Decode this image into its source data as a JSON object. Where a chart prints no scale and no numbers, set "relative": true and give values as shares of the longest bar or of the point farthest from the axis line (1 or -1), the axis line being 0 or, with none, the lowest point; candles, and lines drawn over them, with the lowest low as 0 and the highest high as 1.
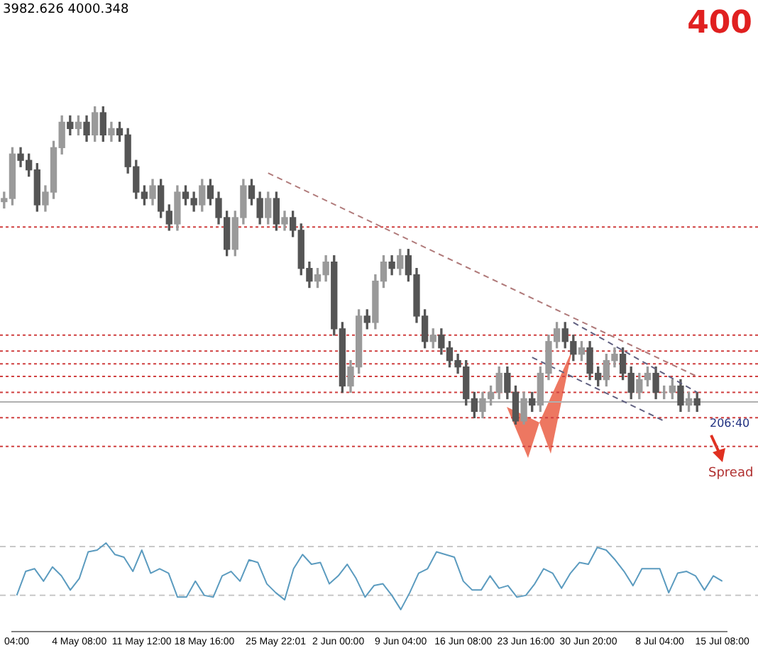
{
  "chart_data": [
    {
      "type": "candlestick",
      "relative": true,
      "colors": [
        "#9a9a9a",
        "#9a9a9a",
        "#555555",
        "#555555",
        "#555555",
        "#9a9a9a",
        "#9a9a9a",
        "#9a9a9a",
        "#555555",
        "#9a9a9a",
        "#555555",
        "#9a9a9a",
        "#555555",
        "#9a9a9a",
        "#555555",
        "#555555",
        "#555555",
        "#555555",
        "#9a9a9a",
        "#555555",
        "#555555",
        "#9a9a9a",
        "#555555",
        "#555555",
        "#9a9a9a",
        "#555555",
        "#555555",
        "#555555",
        "#9a9a9a",
        "#9a9a9a",
        "#555555",
        "#555555",
        "#9a9a9a",
        "#555555",
        "#9a9a9a",
        "#555555",
        "#555555",
        "#555555",
        "#9a9a9a",
        "#9a9a9a",
        "#555555",
        "#555555",
        "#9a9a9a",
        "#9a9a9a",
        "#555555",
        "#9a9a9a",
        "#9a9a9a",
        "#555555",
        "#9a9a9a",
        "#555555",
        "#555555",
        "#555555",
        "#9a9a9a",
        "#555555",
        "#555555",
        "#555555",
        "#555555",
        "#555555",
        "#9a9a9a",
        "#9a9a9a",
        "#9a9a9a",
        "#555555",
        "#555555",
        "#9a9a9a",
        "#555555",
        "#9a9a9a",
        "#9a9a9a",
        "#9a9a9a",
        "#555555",
        "#555555",
        "#9a9a9a",
        "#555555",
        "#555555",
        "#9a9a9a",
        "#9a9a9a",
        "#555555",
        "#555555",
        "#9a9a9a",
        "#9a9a9a",
        "#555555",
        "#9a9a9a",
        "#9a9a9a",
        "#555555",
        "#9a9a9a",
        "#555555"
      ],
      "tick_labels": false,
      "grid": false,
      "categories": [
        null,
        null,
        null,
        null,
        null,
        null,
        null,
        null,
        null,
        null,
        null,
        null,
        null,
        null,
        null,
        null,
        null,
        null,
        null,
        null,
        null,
        null,
        null,
        null,
        null,
        null,
        null,
        null,
        null,
        null,
        null,
        null,
        null,
        null,
        null,
        null,
        null,
        null,
        null,
        null,
        null,
        null,
        null,
        null,
        null,
        null,
        null,
        null,
        null,
        null,
        null,
        null,
        null,
        null,
        null,
        null,
        null,
        null,
        null,
        null,
        null,
        null,
        null,
        null,
        null,
        null,
        null,
        null,
        null,
        null,
        null,
        null,
        null,
        null,
        null,
        null,
        null,
        null,
        null,
        null,
        null,
        null,
        null,
        null,
        null
      ],
      "ohlc": [
        [
          0.7,
          0.73,
          0.68,
          0.71
        ],
        [
          0.71,
          0.87,
          0.69,
          0.85
        ],
        [
          0.85,
          0.87,
          0.81,
          0.83
        ],
        [
          0.83,
          0.85,
          0.78,
          0.8
        ],
        [
          0.8,
          0.82,
          0.67,
          0.69
        ],
        [
          0.69,
          0.75,
          0.67,
          0.73
        ],
        [
          0.73,
          0.89,
          0.71,
          0.87
        ],
        [
          0.87,
          0.97,
          0.85,
          0.95
        ],
        [
          0.95,
          0.97,
          0.91,
          0.93
        ],
        [
          0.93,
          0.97,
          0.91,
          0.95
        ],
        [
          0.95,
          0.97,
          0.89,
          0.91
        ],
        [
          0.91,
          1.0,
          0.89,
          0.98
        ],
        [
          0.98,
          1.0,
          0.89,
          0.91
        ],
        [
          0.91,
          0.95,
          0.89,
          0.93
        ],
        [
          0.93,
          0.95,
          0.89,
          0.91
        ],
        [
          0.91,
          0.93,
          0.79,
          0.81
        ],
        [
          0.81,
          0.83,
          0.71,
          0.73
        ],
        [
          0.73,
          0.75,
          0.69,
          0.71
        ],
        [
          0.71,
          0.77,
          0.69,
          0.75
        ],
        [
          0.75,
          0.77,
          0.65,
          0.67
        ],
        [
          0.67,
          0.69,
          0.61,
          0.63
        ],
        [
          0.63,
          0.75,
          0.61,
          0.73
        ],
        [
          0.73,
          0.75,
          0.69,
          0.71
        ],
        [
          0.71,
          0.73,
          0.67,
          0.69
        ],
        [
          0.69,
          0.77,
          0.67,
          0.75
        ],
        [
          0.75,
          0.77,
          0.69,
          0.71
        ],
        [
          0.71,
          0.73,
          0.63,
          0.65
        ],
        [
          0.65,
          0.67,
          0.53,
          0.55
        ],
        [
          0.55,
          0.67,
          0.53,
          0.65
        ],
        [
          0.65,
          0.77,
          0.63,
          0.75
        ],
        [
          0.75,
          0.77,
          0.69,
          0.71
        ],
        [
          0.71,
          0.73,
          0.63,
          0.65
        ],
        [
          0.65,
          0.73,
          0.63,
          0.71
        ],
        [
          0.71,
          0.73,
          0.61,
          0.63
        ],
        [
          0.63,
          0.67,
          0.61,
          0.65
        ],
        [
          0.65,
          0.67,
          0.59,
          0.61
        ],
        [
          0.61,
          0.63,
          0.47,
          0.49
        ],
        [
          0.49,
          0.51,
          0.43,
          0.45
        ],
        [
          0.45,
          0.49,
          0.43,
          0.47
        ],
        [
          0.47,
          0.53,
          0.45,
          0.51
        ],
        [
          0.51,
          0.53,
          0.28,
          0.3
        ],
        [
          0.3,
          0.32,
          0.1,
          0.12
        ],
        [
          0.12,
          0.2,
          0.1,
          0.18
        ],
        [
          0.18,
          0.36,
          0.16,
          0.34
        ],
        [
          0.34,
          0.36,
          0.3,
          0.32
        ],
        [
          0.32,
          0.47,
          0.3,
          0.45
        ],
        [
          0.45,
          0.53,
          0.43,
          0.51
        ],
        [
          0.51,
          0.53,
          0.47,
          0.49
        ],
        [
          0.49,
          0.55,
          0.47,
          0.53
        ],
        [
          0.53,
          0.55,
          0.45,
          0.47
        ],
        [
          0.47,
          0.49,
          0.32,
          0.34
        ],
        [
          0.34,
          0.36,
          0.24,
          0.26
        ],
        [
          0.26,
          0.3,
          0.24,
          0.28
        ],
        [
          0.28,
          0.3,
          0.22,
          0.24
        ],
        [
          0.24,
          0.26,
          0.18,
          0.2
        ],
        [
          0.2,
          0.22,
          0.16,
          0.18
        ],
        [
          0.18,
          0.2,
          0.06,
          0.08
        ],
        [
          0.08,
          0.1,
          0.02,
          0.04
        ],
        [
          0.04,
          0.1,
          0.02,
          0.08
        ],
        [
          0.08,
          0.12,
          0.06,
          0.1
        ],
        [
          0.1,
          0.18,
          0.08,
          0.16
        ],
        [
          0.16,
          0.18,
          0.08,
          0.1
        ],
        [
          0.1,
          0.12,
          0,
          0.01
        ],
        [
          0.01,
          0.1,
          0,
          0.08
        ],
        [
          0.08,
          0.1,
          0.04,
          0.06
        ],
        [
          0.06,
          0.18,
          0.04,
          0.16
        ],
        [
          0.16,
          0.28,
          0.14,
          0.26
        ],
        [
          0.26,
          0.32,
          0.24,
          0.3
        ],
        [
          0.3,
          0.32,
          0.24,
          0.26
        ],
        [
          0.26,
          0.28,
          0.2,
          0.22
        ],
        [
          0.22,
          0.26,
          0.2,
          0.24
        ],
        [
          0.24,
          0.26,
          0.14,
          0.16
        ],
        [
          0.16,
          0.18,
          0.12,
          0.14
        ],
        [
          0.14,
          0.22,
          0.12,
          0.2
        ],
        [
          0.2,
          0.24,
          0.18,
          0.22
        ],
        [
          0.22,
          0.24,
          0.14,
          0.16
        ],
        [
          0.16,
          0.18,
          0.08,
          0.1
        ],
        [
          0.1,
          0.16,
          0.08,
          0.14
        ],
        [
          0.14,
          0.18,
          0.12,
          0.16
        ],
        [
          0.16,
          0.18,
          0.08,
          0.1
        ],
        [
          0.1,
          0.12,
          0.08,
          0.1
        ],
        [
          0.1,
          0.14,
          0.08,
          0.12
        ],
        [
          0.12,
          0.14,
          0.04,
          0.06
        ],
        [
          0.06,
          0.1,
          0.04,
          0.08
        ],
        [
          0.08,
          0.1,
          0.04,
          0.06
        ]
      ],
      "series": [
        {
          "type": "line",
          "color": "#b07a7a",
          "line_style": "dashed",
          "values": [
            null,
            null,
            null,
            null,
            null,
            null,
            null,
            null,
            null,
            null,
            null,
            null,
            null,
            null,
            null,
            null,
            null,
            null,
            null,
            null,
            null,
            null,
            null,
            null,
            null,
            null,
            null,
            null,
            null,
            null,
            null,
            null,
            0.79,
            null,
            null,
            null,
            null,
            null,
            null,
            null,
            null,
            null,
            null,
            null,
            null,
            null,
            null,
            null,
            null,
            null,
            null,
            null,
            null,
            null,
            null,
            null,
            null,
            null,
            null,
            null,
            null,
            null,
            null,
            null,
            null,
            null,
            null,
            null,
            null,
            null,
            null,
            null,
            null,
            null,
            null,
            null,
            null,
            null,
            null,
            null,
            null,
            null,
            null,
            null,
            0.15
          ]
        },
        {
          "type": "line",
          "color": "#606080",
          "line_style": "dashed",
          "values": [
            null,
            null,
            null,
            null,
            null,
            null,
            null,
            null,
            null,
            null,
            null,
            null,
            null,
            null,
            null,
            null,
            null,
            null,
            null,
            null,
            null,
            null,
            null,
            null,
            null,
            null,
            null,
            null,
            null,
            null,
            null,
            null,
            null,
            null,
            null,
            null,
            null,
            null,
            null,
            null,
            null,
            null,
            null,
            null,
            null,
            null,
            null,
            null,
            null,
            null,
            null,
            null,
            null,
            null,
            null,
            null,
            null,
            null,
            null,
            null,
            null,
            null,
            null,
            null,
            null,
            null,
            null,
            null,
            null,
            0.32,
            null,
            null,
            null,
            null,
            null,
            null,
            null,
            null,
            null,
            null,
            null,
            null,
            null,
            null,
            0.1
          ]
        },
        {
          "type": "line",
          "color": "#606080",
          "line_style": "dashed",
          "values": [
            null,
            null,
            null,
            null,
            null,
            null,
            null,
            null,
            null,
            null,
            null,
            null,
            null,
            null,
            null,
            null,
            null,
            null,
            null,
            null,
            null,
            null,
            null,
            null,
            null,
            null,
            null,
            null,
            null,
            null,
            null,
            null,
            null,
            null,
            null,
            null,
            null,
            null,
            null,
            null,
            null,
            null,
            null,
            null,
            null,
            null,
            null,
            null,
            null,
            null,
            null,
            null,
            null,
            null,
            null,
            null,
            null,
            null,
            null,
            null,
            null,
            null,
            null,
            null,
            0.21,
            null,
            null,
            null,
            null,
            null,
            null,
            null,
            null,
            null,
            null,
            null,
            null,
            null,
            null,
            null,
            0.01,
            null,
            null,
            null,
            null
          ]
        }
      ],
      "ref_lines": [
        {
          "axis": "y",
          "value": 0.62,
          "color": "#d04040",
          "line_style": "dotted"
        },
        {
          "axis": "y",
          "value": 0.28,
          "color": "#d04040",
          "line_style": "dotted"
        },
        {
          "axis": "y",
          "value": 0.23,
          "color": "#d04040",
          "line_style": "dotted"
        },
        {
          "axis": "y",
          "value": 0.19,
          "color": "#d04040",
          "line_style": "dotted"
        },
        {
          "axis": "y",
          "value": 0.15,
          "color": "#d04040",
          "line_style": "dotted"
        },
        {
          "axis": "y",
          "value": 0.1,
          "color": "#d04040",
          "line_style": "dotted"
        },
        {
          "axis": "y",
          "value": 0.07,
          "color": "#b0b0b0",
          "line_style": "solid"
        },
        {
          "axis": "y",
          "value": 0.02,
          "color": "#d04040",
          "line_style": "dotted"
        },
        {
          "axis": "y",
          "value": -0.07,
          "color": "#d04040",
          "line_style": "dotted"
        }
      ],
      "annotations": [
        "3982.626 4000.348",
        "400",
        "206:40",
        "Spread"
      ]
    },
    {
      "type": "line",
      "relative": true,
      "grid": false,
      "categories": [
        "04:00",
        null,
        null,
        null,
        null,
        null,
        null,
        "4 May 08:00",
        null,
        null,
        null,
        null,
        null,
        null,
        "11 May 12:00",
        null,
        null,
        null,
        null,
        null,
        null,
        "18 May 16:00",
        null,
        null,
        null,
        null,
        null,
        null,
        null,
        "25 May 22:01",
        null,
        null,
        null,
        null,
        null,
        null,
        "2 Jun 00:00",
        null,
        null,
        null,
        null,
        null,
        null,
        "9 Jun 04:00",
        null,
        null,
        null,
        null,
        null,
        null,
        "16 Jun 08:00",
        null,
        null,
        null,
        null,
        null,
        null,
        "23 Jun 16:00",
        null,
        null,
        null,
        null,
        null,
        null,
        "30 Jun 20:00",
        null,
        null,
        null,
        null,
        null,
        null,
        null,
        "8 Jul 04:00",
        null,
        null,
        null,
        null,
        null,
        null,
        "15 Jul 08:00"
      ],
      "series": [
        {
          "color": "#5b9bbf",
          "values": [
            0.41,
            0.68,
            0.71,
            0.57,
            0.73,
            0.63,
            0.47,
            0.6,
            0.9,
            0.92,
            1,
            0.87,
            0.84,
            0.68,
            0.92,
            0.66,
            0.71,
            0.66,
            0.39,
            0.39,
            0.57,
            0.41,
            0.39,
            0.63,
            0.68,
            0.57,
            0.81,
            0.78,
            0.54,
            0.44,
            0.36,
            0.71,
            0.87,
            0.76,
            0.78,
            0.54,
            0.63,
            0.76,
            0.6,
            0.39,
            0.52,
            0.54,
            0.41,
            0.25,
            0.44,
            0.66,
            0.71,
            0.9,
            0.87,
            0.84,
            0.57,
            0.47,
            0.47,
            0.63,
            0.49,
            0.52,
            0.39,
            0.41,
            0.54,
            0.71,
            0.66,
            0.49,
            0.66,
            0.78,
            0.76,
            0.95,
            0.92,
            0.81,
            0.68,
            0.52,
            0.71,
            0.71,
            0.71,
            0.44,
            0.66,
            0.68,
            0.63,
            0.47,
            0.63,
            0.57
          ]
        }
      ],
      "ref_lines": [
        {
          "axis": "y",
          "value": 0.96,
          "color": "#c8c8c8",
          "line_style": "dashed"
        },
        {
          "axis": "y",
          "value": 0.41,
          "color": "#c8c8c8",
          "line_style": "dashed"
        }
      ]
    }
  ]
}
